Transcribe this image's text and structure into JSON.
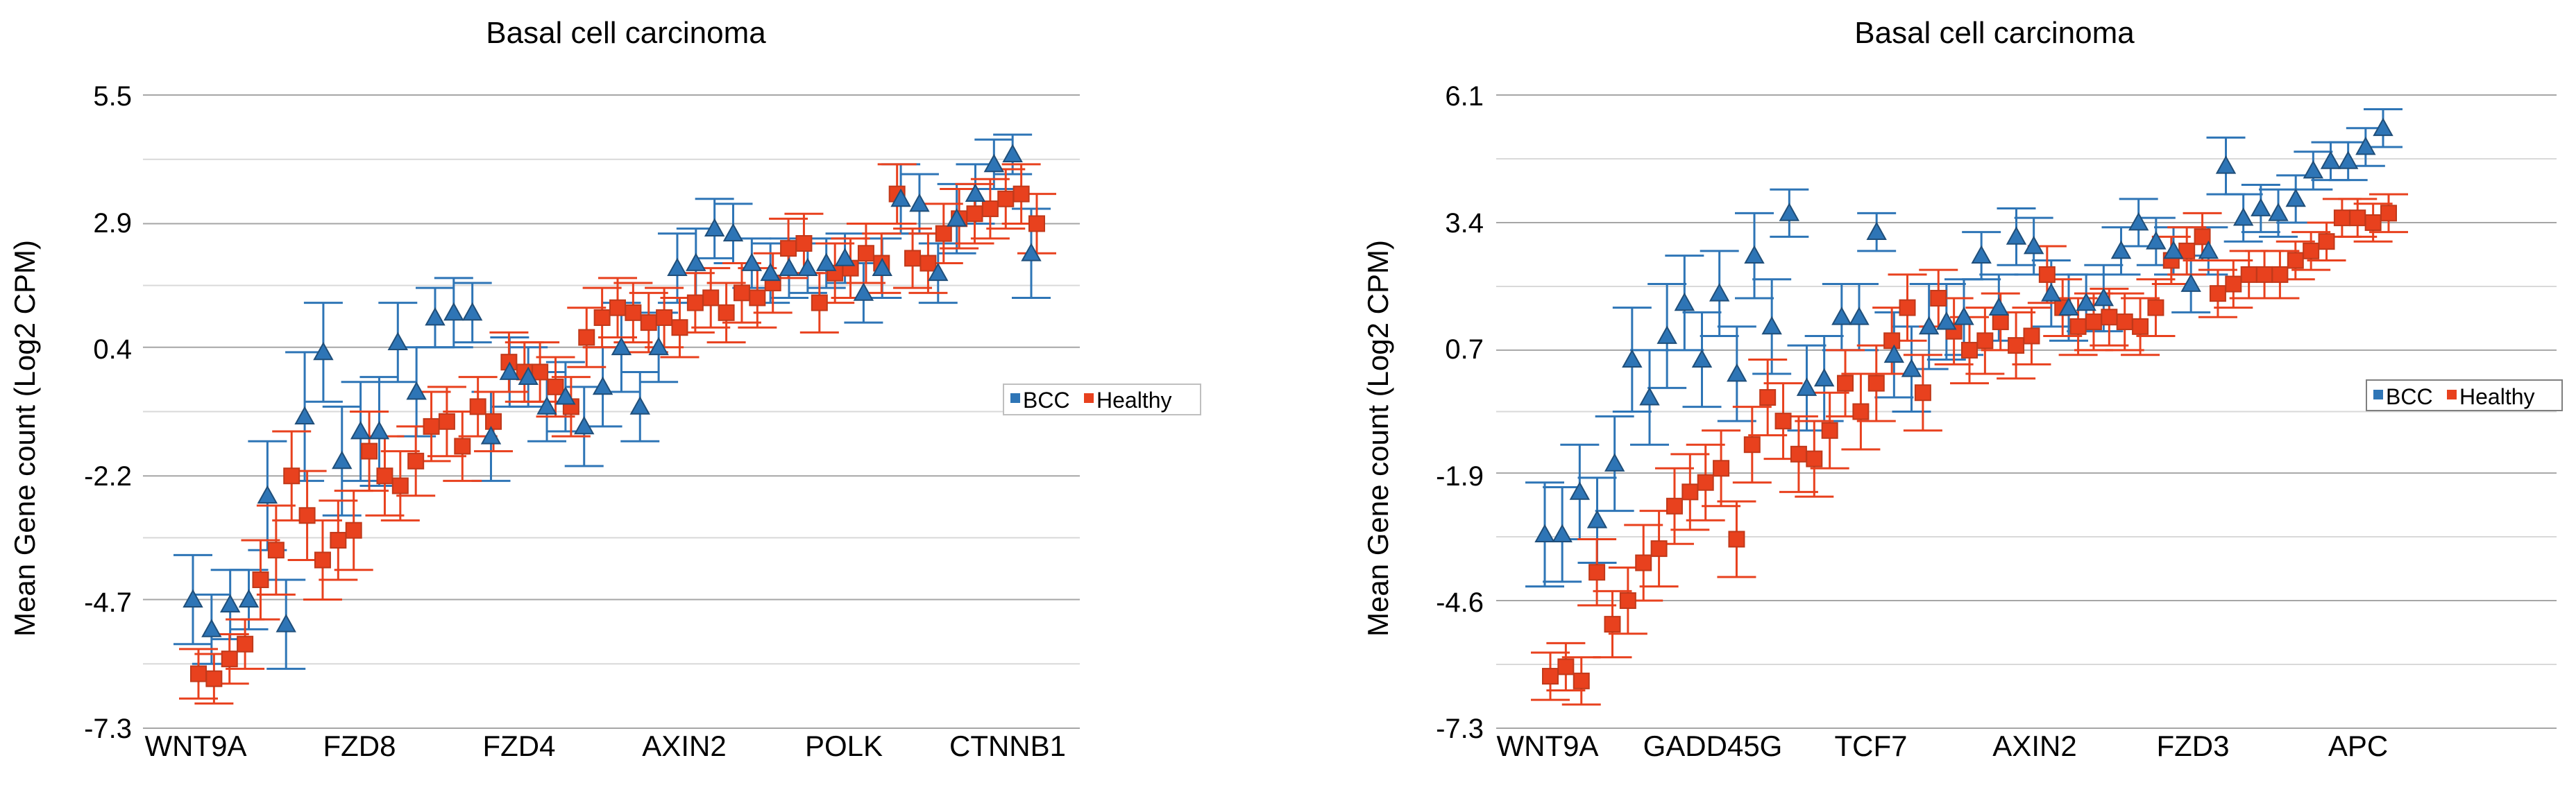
{
  "colors": {
    "bcc": "#2e75b6",
    "healthy": "#e8411e",
    "bcc_stroke": "#1f4e79",
    "healthy_stroke": "#c0391a"
  },
  "chart_data": [
    {
      "type": "scatter",
      "title": "Basal cell carcinoma",
      "xlabel": "",
      "ylabel": "Mean Gene count (Log2 CPM)",
      "ylim": [
        -7.3,
        5.5
      ],
      "yticks": [
        "5.5",
        "2.9",
        "0.4",
        "-2.2",
        "-4.7",
        "-7.3"
      ],
      "ytick_values": [
        5.5,
        2.9,
        0.4,
        -2.2,
        -4.7,
        -7.3
      ],
      "category_labels": [
        "WNT9A",
        "FZD8",
        "FZD4",
        "AXIN2",
        "POLK",
        "CTNNB1"
      ],
      "legend": [
        "BCC",
        "Healthy"
      ],
      "series": [
        {
          "name": "BCC",
          "marker": "triangle",
          "values": [
            -4.7,
            -5.3,
            -4.8,
            -4.7,
            -2.6,
            -5.2,
            -1.0,
            0.3,
            -1.9,
            -1.3,
            -1.3,
            0.5,
            -0.5,
            1.0,
            1.1,
            1.1,
            -1.4,
            -0.1,
            -0.2,
            -0.8,
            -0.6,
            -1.2,
            -0.4,
            0.4,
            -0.8,
            0.4,
            2.0,
            2.1,
            2.8,
            2.7,
            2.1,
            1.9,
            2.0,
            2.0,
            2.1,
            2.2,
            1.5,
            2.0,
            3.4,
            3.3,
            1.9,
            3.0,
            3.5,
            4.1,
            4.3,
            2.3
          ],
          "errors": [
            0.9,
            0.7,
            0.7,
            0.6,
            1.1,
            0.9,
            1.3,
            1.0,
            1.1,
            1.0,
            1.1,
            0.8,
            0.9,
            0.6,
            0.7,
            0.6,
            0.9,
            0.7,
            0.6,
            0.7,
            0.7,
            0.8,
            0.8,
            0.9,
            0.7,
            0.7,
            0.7,
            0.7,
            0.6,
            0.6,
            0.5,
            0.6,
            0.6,
            0.5,
            0.5,
            0.5,
            0.6,
            0.6,
            0.7,
            0.6,
            0.6,
            0.7,
            0.6,
            0.5,
            0.4,
            0.9
          ]
        },
        {
          "name": "Healthy",
          "marker": "square",
          "values": [
            -6.2,
            -6.3,
            -5.9,
            -5.6,
            -4.3,
            -3.7,
            -2.2,
            -3.0,
            -3.9,
            -3.5,
            -3.3,
            -1.7,
            -2.2,
            -2.4,
            -1.9,
            -1.2,
            -1.1,
            -1.6,
            -0.8,
            -1.1,
            0.1,
            -0.1,
            -0.1,
            -0.4,
            -0.8,
            0.6,
            1.0,
            1.2,
            1.1,
            0.9,
            1.0,
            0.8,
            1.3,
            1.4,
            1.1,
            1.5,
            1.4,
            1.7,
            2.4,
            2.5,
            1.3,
            1.9,
            2.0,
            2.3,
            2.1,
            3.5,
            2.2,
            2.1,
            2.7,
            3.0,
            3.1,
            3.2,
            3.4,
            3.5,
            2.9
          ],
          "errors": [
            0.5,
            0.5,
            0.5,
            0.5,
            0.8,
            0.9,
            0.9,
            0.9,
            0.8,
            0.8,
            0.8,
            0.8,
            0.8,
            0.7,
            0.7,
            0.7,
            0.7,
            0.7,
            0.6,
            0.6,
            0.6,
            0.6,
            0.6,
            0.6,
            0.6,
            0.6,
            0.6,
            0.6,
            0.6,
            0.6,
            0.6,
            0.6,
            0.6,
            0.6,
            0.6,
            0.6,
            0.6,
            0.6,
            0.6,
            0.6,
            0.6,
            0.6,
            0.6,
            0.6,
            0.6,
            0.6,
            0.6,
            0.6,
            0.6,
            0.6,
            0.6,
            0.6,
            0.6,
            0.6,
            0.6
          ]
        }
      ]
    },
    {
      "type": "scatter",
      "title": "Basal cell carcinoma",
      "xlabel": "",
      "ylabel": "Mean Gene count (Log2 CPM)",
      "ylim": [
        -7.3,
        6.1
      ],
      "yticks": [
        "6.1",
        "3.4",
        "0.7",
        "-1.9",
        "-4.6",
        "-7.3"
      ],
      "ytick_values": [
        6.1,
        3.4,
        0.7,
        -1.9,
        -4.6,
        -7.3
      ],
      "category_labels": [
        "WNT9A",
        "GADD45G",
        "TCF7",
        "AXIN2",
        "FZD3",
        "APC"
      ],
      "legend": [
        "BCC",
        "Healthy"
      ],
      "series": [
        {
          "name": "BCC",
          "marker": "triangle",
          "values": [
            -3.2,
            -3.2,
            -2.3,
            -2.9,
            -1.7,
            0.5,
            -0.3,
            1.0,
            1.7,
            0.5,
            1.9,
            0.2,
            2.7,
            1.2,
            3.6,
            -0.1,
            0.1,
            1.4,
            1.4,
            3.2,
            0.6,
            0.3,
            1.2,
            1.3,
            1.4,
            2.7,
            1.6,
            3.1,
            2.9,
            1.9,
            1.6,
            1.7,
            1.8,
            2.8,
            3.4,
            3.0,
            2.8,
            2.1,
            2.8,
            4.6,
            3.5,
            3.7,
            3.6,
            3.9,
            4.5,
            4.7,
            4.7,
            5.0,
            5.4
          ],
          "errors": [
            1.1,
            1.0,
            1.0,
            0.9,
            1.0,
            1.1,
            1.0,
            1.1,
            1.0,
            1.0,
            0.9,
            1.0,
            0.9,
            1.0,
            0.5,
            0.9,
            0.9,
            0.7,
            0.7,
            0.4,
            0.9,
            0.9,
            0.9,
            0.8,
            0.8,
            0.5,
            0.7,
            0.6,
            0.6,
            0.7,
            0.7,
            0.6,
            0.7,
            0.5,
            0.5,
            0.5,
            0.5,
            0.6,
            0.5,
            0.6,
            0.5,
            0.5,
            0.5,
            0.5,
            0.4,
            0.4,
            0.4,
            0.4,
            0.4
          ]
        },
        {
          "name": "Healthy",
          "marker": "square",
          "values": [
            -6.2,
            -6.0,
            -6.3,
            -4.0,
            -5.1,
            -4.6,
            -3.8,
            -3.5,
            -2.6,
            -2.3,
            -2.1,
            -1.8,
            -3.3,
            -1.3,
            -0.3,
            -0.8,
            -1.5,
            -1.6,
            -1.0,
            0.0,
            -0.6,
            0.0,
            0.9,
            1.6,
            -0.2,
            1.8,
            1.1,
            0.7,
            0.9,
            1.3,
            0.8,
            1.0,
            2.3,
            1.6,
            1.2,
            1.3,
            1.4,
            1.3,
            1.2,
            1.6,
            2.6,
            2.8,
            3.1,
            1.9,
            2.1,
            2.3,
            2.3,
            2.3,
            2.6,
            2.8,
            3.0,
            3.5,
            3.5,
            3.4,
            3.6
          ],
          "errors": [
            0.5,
            0.5,
            0.5,
            0.7,
            0.7,
            0.7,
            0.8,
            0.8,
            0.8,
            0.8,
            0.8,
            0.8,
            0.8,
            0.8,
            0.8,
            0.8,
            0.8,
            0.8,
            0.8,
            0.7,
            0.8,
            0.8,
            0.7,
            0.7,
            0.8,
            0.6,
            0.7,
            0.7,
            0.7,
            0.6,
            0.7,
            0.6,
            0.6,
            0.6,
            0.6,
            0.6,
            0.6,
            0.6,
            0.6,
            0.6,
            0.5,
            0.5,
            0.5,
            0.5,
            0.5,
            0.5,
            0.5,
            0.5,
            0.4,
            0.4,
            0.4,
            0.4,
            0.4,
            0.4,
            0.4
          ]
        }
      ]
    }
  ]
}
